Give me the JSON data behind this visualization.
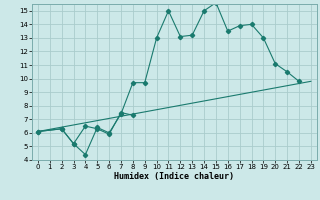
{
  "xlabel": "Humidex (Indice chaleur)",
  "bg_color": "#cce8e8",
  "grid_color": "#aacccc",
  "line_color": "#1a7a6e",
  "xlim": [
    -0.5,
    23.5
  ],
  "ylim": [
    4,
    15.5
  ],
  "xticks": [
    0,
    1,
    2,
    3,
    4,
    5,
    6,
    7,
    8,
    9,
    10,
    11,
    12,
    13,
    14,
    15,
    16,
    17,
    18,
    19,
    20,
    21,
    22,
    23
  ],
  "yticks": [
    4,
    5,
    6,
    7,
    8,
    9,
    10,
    11,
    12,
    13,
    14,
    15
  ],
  "line1_x": [
    0,
    2,
    3,
    4,
    5,
    6,
    7,
    8,
    9,
    10,
    11,
    12,
    13,
    14,
    15,
    16,
    17,
    18,
    19,
    20,
    21,
    22
  ],
  "line1_y": [
    6.1,
    6.3,
    5.2,
    4.4,
    6.4,
    6.0,
    7.4,
    9.7,
    9.7,
    13.0,
    15.0,
    13.1,
    13.2,
    15.0,
    15.6,
    13.5,
    13.9,
    14.0,
    13.0,
    11.1,
    10.5,
    9.8
  ],
  "line2_x": [
    0,
    2,
    3,
    4,
    5,
    6,
    7,
    8
  ],
  "line2_y": [
    6.1,
    6.3,
    5.2,
    6.5,
    6.3,
    5.9,
    7.5,
    7.3
  ],
  "line3_x": [
    0,
    23
  ],
  "line3_y": [
    6.1,
    9.8
  ]
}
